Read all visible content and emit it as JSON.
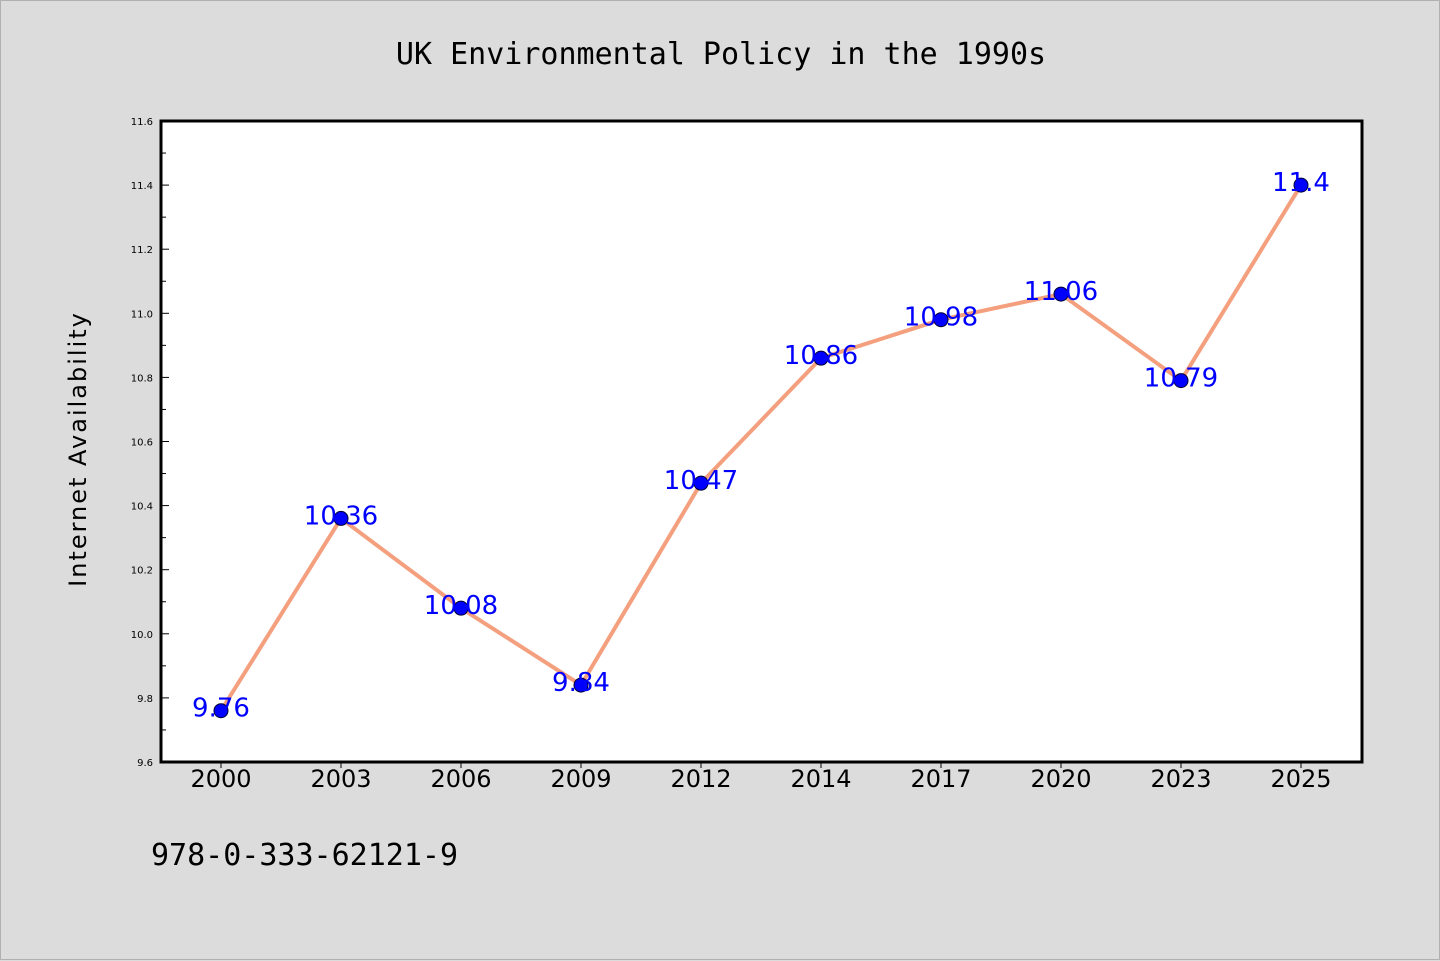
{
  "chart_data": {
    "type": "line",
    "title": "UK Environmental Policy in the 1990s",
    "xlabel": "",
    "ylabel": "Internet Availability",
    "categories": [
      "2000",
      "2003",
      "2006",
      "2009",
      "2012",
      "2014",
      "2017",
      "2020",
      "2023",
      "2025"
    ],
    "series": [
      {
        "values": [
          9.76,
          10.36,
          10.08,
          9.84,
          10.47,
          10.86,
          10.98,
          11.06,
          10.79,
          11.4
        ],
        "data_labels": [
          "9.76",
          "10.36",
          "10.08",
          "9.84",
          "10.47",
          "10.86",
          "10.98",
          "11.06",
          "10.79",
          "11.4"
        ]
      }
    ],
    "ylim": [
      9.6,
      11.6
    ],
    "yticks": [
      "9.6",
      "9.8",
      "10.0",
      "10.2",
      "10.4",
      "10.6",
      "10.8",
      "11.0",
      "11.2",
      "11.4",
      "11.6"
    ],
    "grid": false,
    "legend": "none",
    "colors": {
      "line": "#f4a07e",
      "marker_fill": "#0000ff",
      "marker_edge": "#000033",
      "data_label": "#0000ff",
      "plot_background": "#ffffff",
      "figure_background": "#dcdcdc"
    }
  },
  "footer_text": "978-0-333-62121-9"
}
